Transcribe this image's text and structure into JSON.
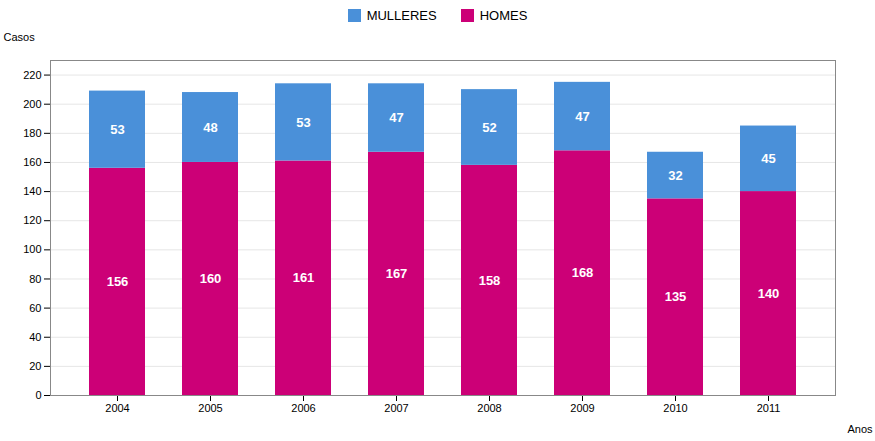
{
  "chart_data": {
    "type": "bar",
    "stacked": true,
    "categories": [
      "2004",
      "2005",
      "2006",
      "2007",
      "2008",
      "2009",
      "2010",
      "2011"
    ],
    "series": [
      {
        "name": "HOMES",
        "color": "#CC0077",
        "values": [
          156,
          160,
          161,
          167,
          158,
          168,
          135,
          140
        ]
      },
      {
        "name": "MULLERES",
        "color": "#4A90D9",
        "values": [
          53,
          48,
          53,
          47,
          52,
          47,
          32,
          45
        ]
      }
    ],
    "x_label": "Anos",
    "y_label": "Casos",
    "ylim": [
      0,
      230
    ],
    "yticks": [
      0,
      20,
      40,
      60,
      80,
      100,
      120,
      140,
      160,
      180,
      200,
      220
    ],
    "grid": true,
    "legend": "top",
    "data_labels": true
  }
}
